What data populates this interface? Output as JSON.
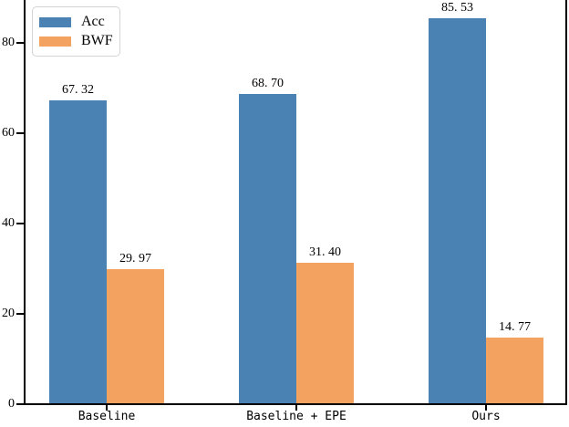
{
  "figure": {
    "background": "#ffffff",
    "axis_color": "#000000"
  },
  "legend": {
    "position": "upper-left",
    "entries": [
      "Acc",
      "BWF"
    ]
  },
  "chart_data": {
    "type": "bar",
    "title": "",
    "xlabel": "",
    "ylabel": "",
    "categories": [
      "Baseline",
      "Baseline + EPE",
      "Ours"
    ],
    "series": [
      {
        "name": "Acc",
        "color": "#4a82b4",
        "values": [
          67.32,
          68.7,
          85.53
        ],
        "value_labels": [
          "67. 32",
          "68. 70",
          "85. 53"
        ]
      },
      {
        "name": "BWF",
        "color": "#f4a25f",
        "values": [
          29.97,
          31.4,
          14.77
        ],
        "value_labels": [
          "29. 97",
          "31. 40",
          "14. 77"
        ]
      }
    ],
    "yticks": [
      0,
      20,
      40,
      60,
      80
    ],
    "ylim": [
      0,
      89.5
    ],
    "grid": false,
    "legend_position": "upper left",
    "bar_value_labels_shown": true
  }
}
